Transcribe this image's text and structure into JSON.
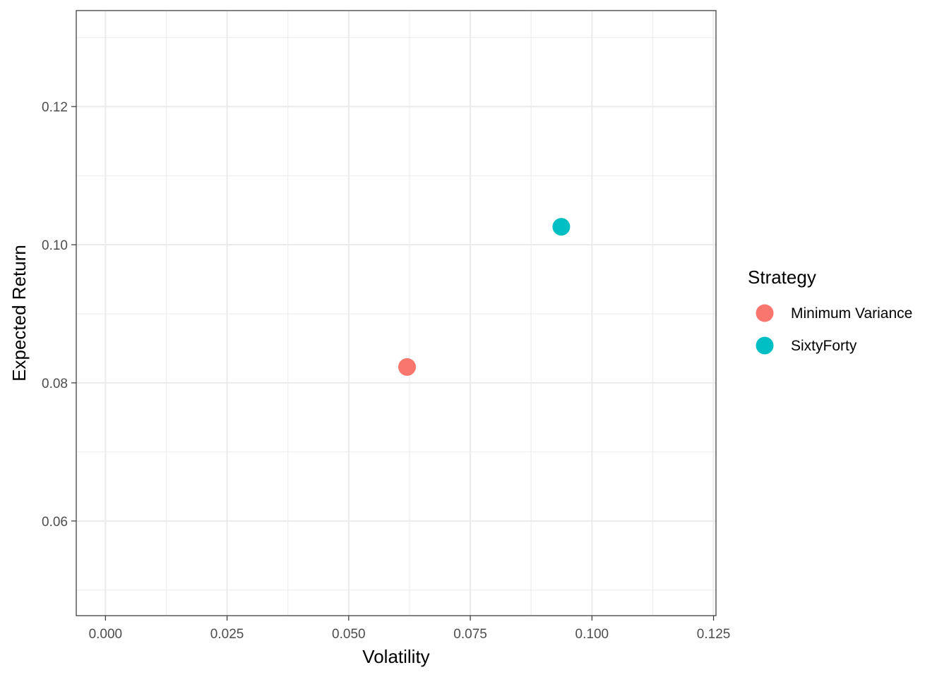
{
  "chart_data": {
    "type": "scatter",
    "title": "",
    "xlabel": "Volatility",
    "ylabel": "Expected Return",
    "xlim": [
      -0.006,
      0.1255
    ],
    "ylim": [
      0.0463,
      0.1339
    ],
    "x_ticks": [
      0.0,
      0.025,
      0.05,
      0.075,
      0.1,
      0.125
    ],
    "x_tick_labels": [
      "0.000",
      "0.025",
      "0.050",
      "0.075",
      "0.100",
      "0.125"
    ],
    "y_ticks": [
      0.06,
      0.08,
      0.1,
      0.12
    ],
    "y_tick_labels": [
      "0.06",
      "0.08",
      "0.10",
      "0.12"
    ],
    "grid": true,
    "legend": {
      "title": "Strategy",
      "placement": "right"
    },
    "series": [
      {
        "name": "Minimum Variance",
        "color": "#F8766D",
        "points": [
          {
            "x": 0.062,
            "y": 0.0823
          }
        ]
      },
      {
        "name": "SixtyForty",
        "color": "#00BFC4",
        "points": [
          {
            "x": 0.0937,
            "y": 0.1026
          }
        ]
      }
    ]
  }
}
